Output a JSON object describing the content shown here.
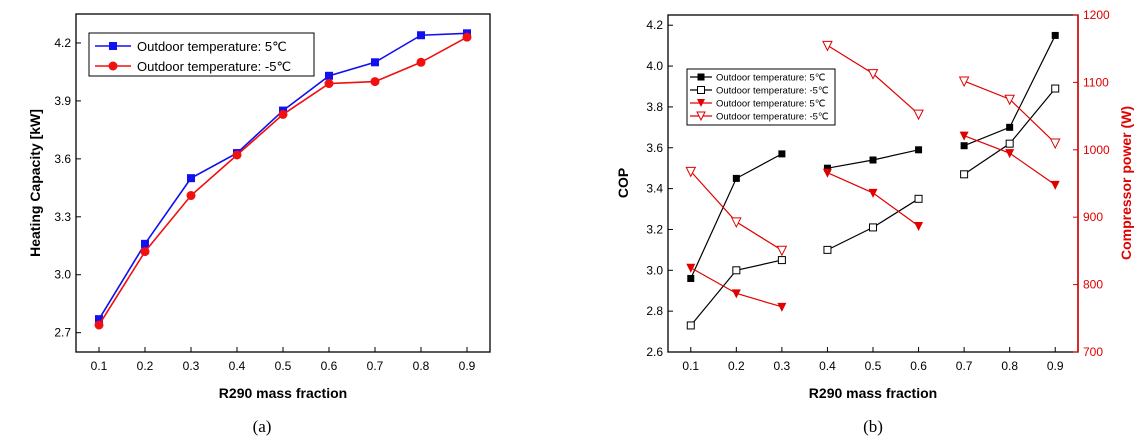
{
  "chart_data": [
    {
      "type": "line",
      "caption": "(a)",
      "xlabel": "R290 mass fraction",
      "ylabel": "Heating Capacity [kW]",
      "xlim": [
        0.05,
        0.95
      ],
      "ylim": [
        2.6,
        4.35
      ],
      "xticks": [
        "0.1",
        "0.2",
        "0.3",
        "0.4",
        "0.5",
        "0.6",
        "0.7",
        "0.8",
        "0.9"
      ],
      "yticks": [
        "2.7",
        "3.0",
        "3.3",
        "3.6",
        "3.9",
        "4.2"
      ],
      "legend_position": "top-left",
      "x": [
        0.1,
        0.2,
        0.3,
        0.4,
        0.5,
        0.6,
        0.7,
        0.8,
        0.9
      ],
      "series": [
        {
          "name": "Outdoor temperature: 5℃",
          "color": "#1010f0",
          "marker": "square",
          "values": [
            2.77,
            3.16,
            3.5,
            3.63,
            3.85,
            4.03,
            4.1,
            4.24,
            4.25
          ]
        },
        {
          "name": "Outdoor temperature: -5℃",
          "color": "#f01010",
          "marker": "circle",
          "values": [
            2.74,
            3.12,
            3.41,
            3.62,
            3.83,
            3.99,
            4.0,
            4.1,
            4.23
          ]
        }
      ]
    },
    {
      "type": "line",
      "caption": "(b)",
      "xlabel": "R290 mass fraction",
      "ylabel": "COP",
      "y2label": "Compressor power (W)",
      "xlim": [
        0.05,
        0.95
      ],
      "ylim": [
        2.6,
        4.25
      ],
      "y2lim": [
        700,
        1200
      ],
      "xticks": [
        "0.1",
        "0.2",
        "0.3",
        "0.4",
        "0.5",
        "0.6",
        "0.7",
        "0.8",
        "0.9"
      ],
      "yticks": [
        "2.6",
        "2.8",
        "3.0",
        "3.2",
        "3.4",
        "3.6",
        "3.8",
        "4.0",
        "4.2"
      ],
      "y2ticks": [
        "700",
        "800",
        "900",
        "1000",
        "1100",
        "1200"
      ],
      "legend_position": "top-left",
      "series": [
        {
          "name": "Outdoor temperature: 5℃",
          "axis": "left",
          "color": "#000000",
          "marker": "square-filled",
          "segments": [
            [
              [
                0.1,
                2.96
              ],
              [
                0.2,
                3.45
              ],
              [
                0.3,
                3.57
              ]
            ],
            [
              [
                0.4,
                3.5
              ],
              [
                0.5,
                3.54
              ],
              [
                0.6,
                3.59
              ]
            ],
            [
              [
                0.7,
                3.61
              ],
              [
                0.8,
                3.7
              ],
              [
                0.9,
                4.15
              ]
            ]
          ]
        },
        {
          "name": "Outdoor temperature: -5℃",
          "axis": "left",
          "color": "#000000",
          "marker": "square-open",
          "segments": [
            [
              [
                0.1,
                2.73
              ],
              [
                0.2,
                3.0
              ],
              [
                0.3,
                3.05
              ]
            ],
            [
              [
                0.4,
                3.1
              ],
              [
                0.5,
                3.21
              ],
              [
                0.6,
                3.35
              ]
            ],
            [
              [
                0.7,
                3.47
              ],
              [
                0.8,
                3.62
              ],
              [
                0.9,
                3.89
              ]
            ]
          ]
        },
        {
          "name": "Outdoor temperature: 5℃",
          "axis": "right",
          "color": "#e00000",
          "marker": "triangle-down-filled",
          "segments": [
            [
              [
                0.1,
                825
              ],
              [
                0.2,
                787
              ],
              [
                0.3,
                767
              ]
            ],
            [
              [
                0.4,
                966
              ],
              [
                0.5,
                936
              ],
              [
                0.6,
                887
              ]
            ],
            [
              [
                0.7,
                1021
              ],
              [
                0.8,
                995
              ],
              [
                0.9,
                948
              ]
            ]
          ]
        },
        {
          "name": "Outdoor temperature: -5℃",
          "axis": "right",
          "color": "#e00000",
          "marker": "triangle-down-open",
          "segments": [
            [
              [
                0.1,
                968
              ],
              [
                0.2,
                893
              ],
              [
                0.3,
                851
              ]
            ],
            [
              [
                0.4,
                1155
              ],
              [
                0.5,
                1113
              ],
              [
                0.6,
                1053
              ]
            ],
            [
              [
                0.7,
                1102
              ],
              [
                0.8,
                1075
              ],
              [
                0.9,
                1010
              ]
            ]
          ]
        }
      ]
    }
  ]
}
